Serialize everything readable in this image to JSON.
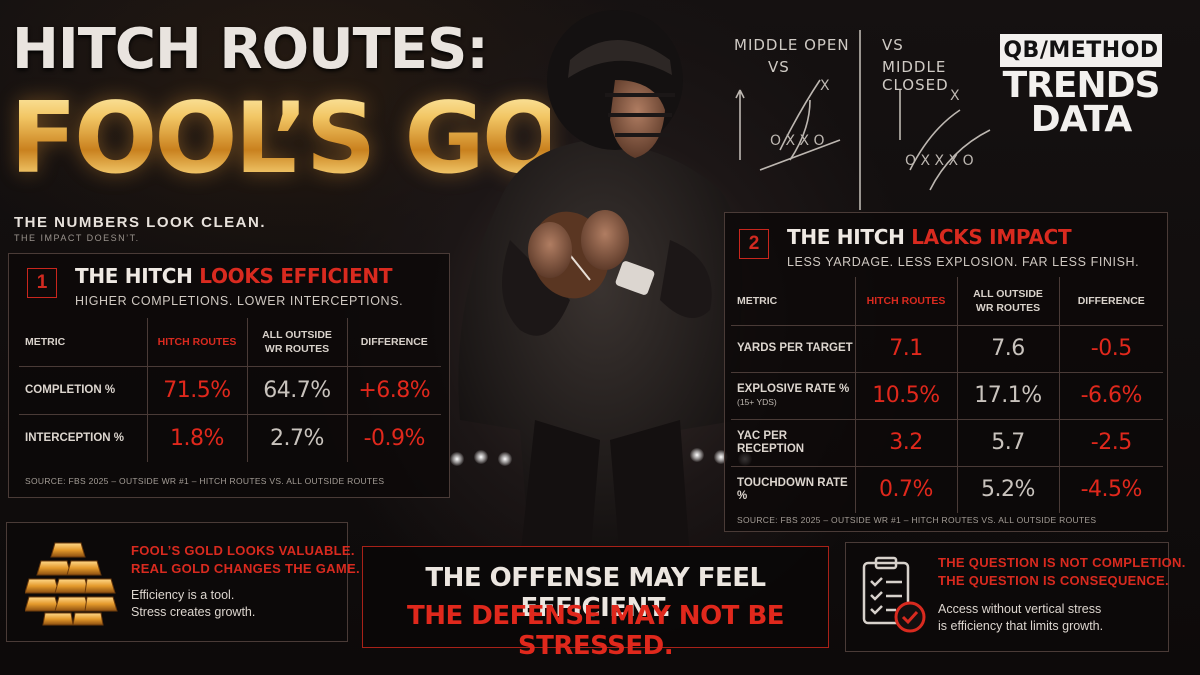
{
  "headline": {
    "line1": "HITCH ROUTES:",
    "line2": "FOOL’S GOLD?",
    "subtitle": "THE NUMBERS LOOK CLEAN.",
    "subtitle_small": "THE IMPACT DOESN’T."
  },
  "logo": {
    "badge": "QB/METHOD",
    "line1": "TRENDS",
    "line2": "DATA"
  },
  "chalkboard": {
    "left_label_1": "MIDDLE OPEN",
    "left_label_2": "VS",
    "right_label_1": "VS",
    "right_label_2": "MIDDLE CLOSED"
  },
  "panel1": {
    "number": "1",
    "title_white": "THE HITCH",
    "title_red": "LOOKS EFFICIENT",
    "subtitle": "HIGHER COMPLETIONS. LOWER INTERCEPTIONS.",
    "headers": [
      "METRIC",
      "HITCH ROUTES",
      "ALL OUTSIDE WR ROUTES",
      "DIFFERENCE"
    ],
    "rows": [
      {
        "metric": "COMPLETION %",
        "hitch": "71.5%",
        "all": "64.7%",
        "diff": "+6.8%"
      },
      {
        "metric": "INTERCEPTION %",
        "hitch": "1.8%",
        "all": "2.7%",
        "diff": "-0.9%"
      }
    ],
    "source": "SOURCE: FBS 2025 – OUTSIDE WR #1 – HITCH ROUTES VS. ALL OUTSIDE ROUTES"
  },
  "panel2": {
    "number": "2",
    "title_white": "THE HITCH",
    "title_red": "LACKS IMPACT",
    "subtitle": "LESS YARDAGE. LESS EXPLOSION. FAR LESS FINISH.",
    "headers": [
      "METRIC",
      "HITCH ROUTES",
      "ALL OUTSIDE WR ROUTES",
      "DIFFERENCE"
    ],
    "rows": [
      {
        "metric": "YARDS PER TARGET",
        "note": "",
        "hitch": "7.1",
        "all": "7.6",
        "diff": "-0.5"
      },
      {
        "metric": "EXPLOSIVE RATE %",
        "note": "(15+ YDS)",
        "hitch": "10.5%",
        "all": "17.1%",
        "diff": "-6.6%"
      },
      {
        "metric": "YAC PER RECEPTION",
        "note": "",
        "hitch": "3.2",
        "all": "5.7",
        "diff": "-2.5"
      },
      {
        "metric": "TOUCHDOWN RATE %",
        "note": "",
        "hitch": "0.7%",
        "all": "5.2%",
        "diff": "-4.5%"
      }
    ],
    "source": "SOURCE: FBS 2025 – OUTSIDE WR #1 – HITCH ROUTES VS. ALL OUTSIDE ROUTES"
  },
  "card_gold": {
    "red_1": "FOOL’S GOLD LOOKS VALUABLE.",
    "red_2": "REAL GOLD CHANGES THE GAME.",
    "body_1": "Efficiency is a tool.",
    "body_2": "Stress creates growth."
  },
  "card_center": {
    "line1": "THE OFFENSE MAY FEEL EFFICIENT.",
    "line2": "THE DEFENSE MAY NOT BE STRESSED."
  },
  "card_question": {
    "red_1": "THE QUESTION IS NOT COMPLETION.",
    "red_2": "THE QUESTION IS CONSEQUENCE.",
    "body_1": "Access without vertical stress",
    "body_2": "is efficiency that limits growth."
  },
  "colors": {
    "accent_red": "#d92a1f",
    "gold": "#e7a845",
    "panel_border": "#4a3b37",
    "background": "#0c0a0a"
  },
  "icons": [
    "gold-bars-icon",
    "clipboard-checklist-icon"
  ]
}
